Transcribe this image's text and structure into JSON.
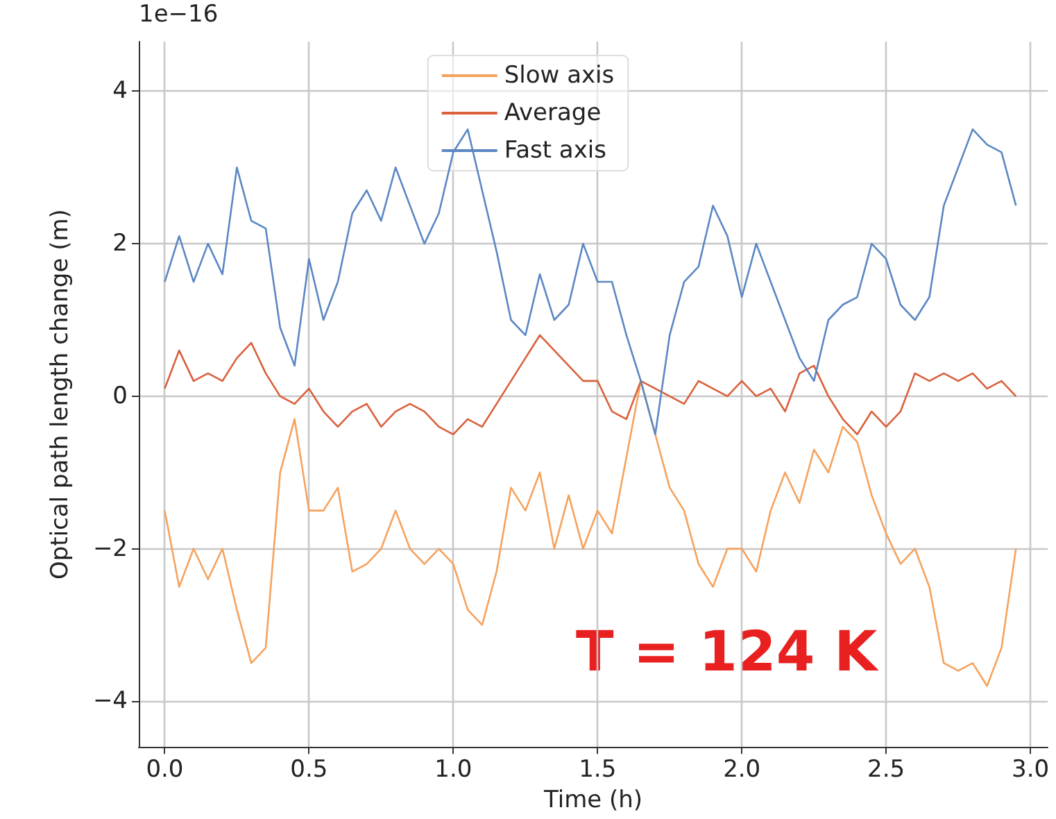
{
  "chart_data": {
    "type": "line",
    "xlabel": "Time (h)",
    "ylabel": "Optical path length change (m)",
    "annotations": [
      "1e−16",
      "T = 124 K"
    ],
    "x": [
      0,
      0.05,
      0.1,
      0.15,
      0.2,
      0.25,
      0.3,
      0.35,
      0.4,
      0.45,
      0.5,
      0.55,
      0.6,
      0.65,
      0.7,
      0.75,
      0.8,
      0.85,
      0.9,
      0.95,
      1.0,
      1.05,
      1.1,
      1.15,
      1.2,
      1.25,
      1.3,
      1.35,
      1.4,
      1.45,
      1.5,
      1.55,
      1.6,
      1.65,
      1.7,
      1.75,
      1.8,
      1.85,
      1.9,
      1.95,
      2.0,
      2.05,
      2.1,
      2.15,
      2.2,
      2.25,
      2.3,
      2.35,
      2.4,
      2.45,
      2.5,
      2.55,
      2.6,
      2.65,
      2.7,
      2.75,
      2.8,
      2.85,
      2.9,
      2.95
    ],
    "series": [
      {
        "name": "Slow axis",
        "color": "#f5a25d",
        "values": [
          -1.5,
          -2.5,
          -2.0,
          -2.4,
          -2.0,
          -2.8,
          -3.5,
          -3.3,
          -1.0,
          -0.3,
          -1.5,
          -1.5,
          -1.2,
          -2.3,
          -2.2,
          -2.0,
          -1.5,
          -2.0,
          -2.2,
          -2.0,
          -2.2,
          -2.8,
          -3.0,
          -2.3,
          -1.2,
          -1.5,
          -1.0,
          -2.0,
          -1.3,
          -2.0,
          -1.5,
          -1.8,
          -0.8,
          0.2,
          -0.5,
          -1.2,
          -1.5,
          -2.2,
          -2.5,
          -2.0,
          -2.0,
          -2.3,
          -1.5,
          -1.0,
          -1.4,
          -0.7,
          -1.0,
          -0.4,
          -0.6,
          -1.3,
          -1.8,
          -2.2,
          -2.0,
          -2.5,
          -3.5,
          -3.6,
          -3.5,
          -3.8,
          -3.3,
          -2.0
        ]
      },
      {
        "name": "Average",
        "color": "#d9603b",
        "values": [
          0.1,
          0.6,
          0.2,
          0.3,
          0.2,
          0.5,
          0.7,
          0.3,
          0.0,
          -0.1,
          0.1,
          -0.2,
          -0.4,
          -0.2,
          -0.1,
          -0.4,
          -0.2,
          -0.1,
          -0.2,
          -0.4,
          -0.5,
          -0.3,
          -0.4,
          -0.1,
          0.2,
          0.5,
          0.8,
          0.6,
          0.4,
          0.2,
          0.2,
          -0.2,
          -0.3,
          0.2,
          0.1,
          0.0,
          -0.1,
          0.2,
          0.1,
          0.0,
          0.2,
          0.0,
          0.1,
          -0.2,
          0.3,
          0.4,
          0.0,
          -0.3,
          -0.5,
          -0.2,
          -0.4,
          -0.2,
          0.3,
          0.2,
          0.3,
          0.2,
          0.3,
          0.1,
          0.2,
          0.0
        ]
      },
      {
        "name": "Fast axis",
        "color": "#5b87c4",
        "values": [
          1.5,
          2.1,
          1.5,
          2.0,
          1.6,
          3.0,
          2.3,
          2.2,
          0.9,
          0.4,
          1.8,
          1.0,
          1.5,
          2.4,
          2.7,
          2.3,
          3.0,
          2.5,
          2.0,
          2.4,
          3.2,
          3.5,
          2.7,
          1.9,
          1.0,
          0.8,
          1.6,
          1.0,
          1.2,
          2.0,
          1.5,
          1.5,
          0.8,
          0.2,
          -0.5,
          0.8,
          1.5,
          1.7,
          2.5,
          2.1,
          1.3,
          2.0,
          1.5,
          1.0,
          0.5,
          0.2,
          1.0,
          1.2,
          1.3,
          2.0,
          1.8,
          1.2,
          1.0,
          1.3,
          2.5,
          3.0,
          3.5,
          3.3,
          3.2,
          2.5
        ]
      }
    ],
    "xlim": [
      -0.09,
      3.06
    ],
    "xticks": [
      {
        "value": 0,
        "label": "0.0"
      },
      {
        "value": 0.5,
        "label": "0.5"
      },
      {
        "value": 1,
        "label": "1.0"
      },
      {
        "value": 1.5,
        "label": "1.5"
      },
      {
        "value": 2,
        "label": "2.0"
      },
      {
        "value": 2.5,
        "label": "2.5"
      },
      {
        "value": 3,
        "label": "3.0"
      }
    ],
    "ylim": [
      -4.6,
      4.65
    ],
    "yticks": [
      {
        "value": -4,
        "label": "−4"
      },
      {
        "value": -2,
        "label": "−2"
      },
      0,
      2,
      4
    ],
    "grid": true,
    "legend": "top",
    "line_style": "solid",
    "marker": "none"
  }
}
